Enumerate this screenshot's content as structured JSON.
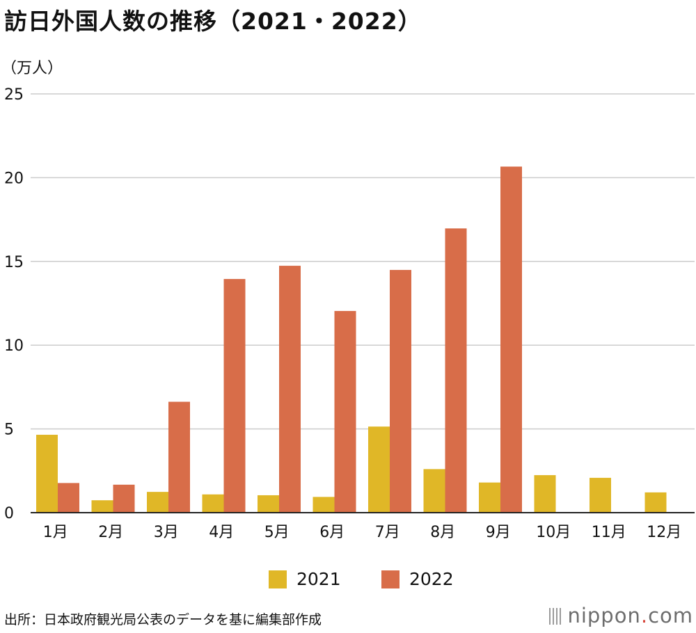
{
  "title": "訪日外国人数の推移（2021・2022）",
  "unit_label": "（万人）",
  "source": "出所：日本政府観光局公表のデータを基に編集部作成",
  "brand": {
    "name": "nippon",
    "dot": ".",
    "suffix": "com"
  },
  "colors": {
    "series_2021": "#e0b727",
    "series_2022": "#d86d49",
    "grid": "#cccccc",
    "axis": "#222222"
  },
  "chart_data": {
    "type": "bar",
    "title": "訪日外国人数の推移（2021・2022）",
    "ylabel": "（万人）",
    "xlabel": "",
    "ylim": [
      0,
      25
    ],
    "yticks": [
      0,
      5,
      10,
      15,
      20,
      25
    ],
    "grid": true,
    "legend_position": "bottom-center",
    "categories": [
      "1月",
      "2月",
      "3月",
      "4月",
      "5月",
      "6月",
      "7月",
      "8月",
      "9月",
      "10月",
      "11月",
      "12月"
    ],
    "series": [
      {
        "name": "2021",
        "values": [
          4.65,
          0.74,
          1.24,
          1.09,
          1.04,
          0.94,
          5.14,
          2.6,
          1.8,
          2.24,
          2.08,
          1.21
        ]
      },
      {
        "name": "2022",
        "values": [
          1.77,
          1.67,
          6.62,
          13.95,
          14.74,
          12.04,
          14.49,
          16.97,
          20.66,
          null,
          null,
          null
        ]
      }
    ]
  }
}
